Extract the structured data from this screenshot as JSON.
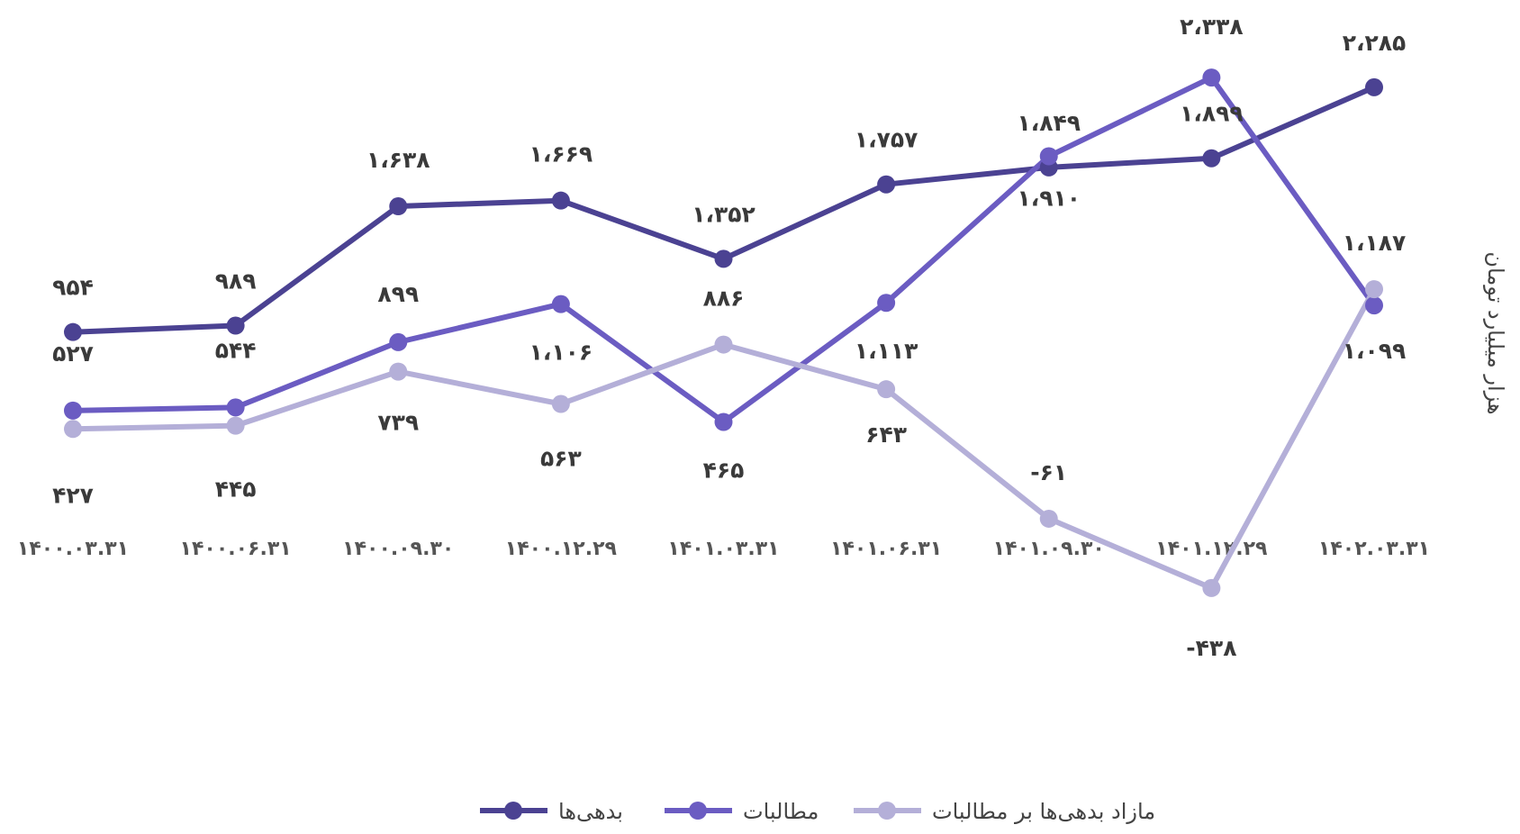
{
  "chart_data": {
    "type": "line",
    "y_label": "هزار میلیارد تومان",
    "categories": [
      "۱۴۰۰.۰۳.۳۱",
      "۱۴۰۰.۰۶.۳۱",
      "۱۴۰۰.۰۹.۳۰",
      "۱۴۰۰.۱۲.۲۹",
      "۱۴۰۱.۰۳.۳۱",
      "۱۴۰۱.۰۶.۳۱",
      "۱۴۰۱.۰۹.۳۰",
      "۱۴۰۱.۱۲.۲۹",
      "۱۴۰۲.۰۳.۳۱"
    ],
    "ylim": [
      -600,
      2500
    ],
    "series": [
      {
        "name": "بدهی‌ها",
        "color": "#4b4292",
        "values": [
          954,
          989,
          1638,
          1669,
          1352,
          1757,
          1849,
          1899,
          2285
        ],
        "value_labels": [
          "۹۵۴",
          "۹۸۹",
          "۱،۶۳۸",
          "۱،۶۶۹",
          "۱،۳۵۲",
          "۱،۷۵۷",
          "۱،۸۴۹",
          "۱،۸۹۹",
          "۲،۲۸۵"
        ]
      },
      {
        "name": "مطالبات",
        "color": "#6b5cc2",
        "values": [
          527,
          544,
          899,
          1106,
          465,
          1113,
          1910,
          2338,
          1099
        ],
        "value_labels": [
          "۵۲۷",
          "۵۴۴",
          "۸۹۹",
          "۱،۱۰۶",
          "۴۶۵",
          "۱،۱۱۳",
          "۱،۹۱۰",
          "۲،۳۳۸",
          "۱،۰۹۹"
        ]
      },
      {
        "name": "مازاد بدهی‌ها بر مطالبات",
        "color": "#b4afd8",
        "values": [
          427,
          445,
          739,
          563,
          886,
          643,
          -61,
          -438,
          1187
        ],
        "value_labels": [
          "۴۲۷",
          "۴۴۵",
          "۷۳۹",
          "۵۶۳",
          "۸۸۶",
          "۶۴۳",
          "-۶۱",
          "-۴۳۸",
          "۱،۱۸۷"
        ]
      }
    ]
  }
}
